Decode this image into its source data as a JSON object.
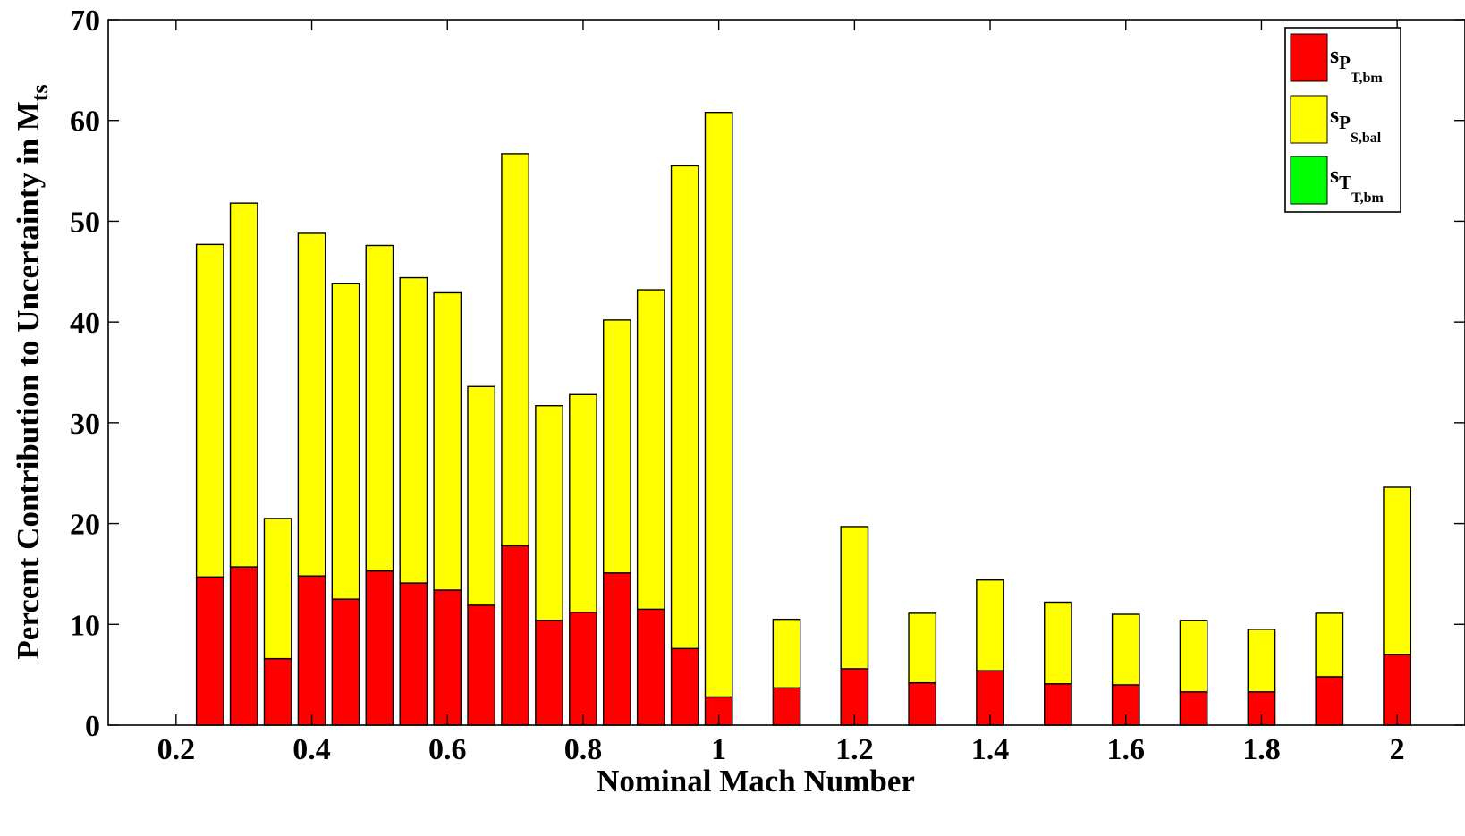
{
  "chart_data": {
    "type": "bar",
    "stacked": true,
    "xlabel": "Nominal Mach Number",
    "ylabel": {
      "text": "Percent Contribution to Uncertainty in M",
      "sub": "ts"
    },
    "xlim": [
      0.1,
      2.1
    ],
    "ylim": [
      0,
      70
    ],
    "xticks": [
      0.2,
      0.4,
      0.6,
      0.8,
      1,
      1.2,
      1.4,
      1.6,
      1.8,
      2
    ],
    "xtick_labels": [
      "0.2",
      "0.4",
      "0.6",
      "0.8",
      "1",
      "1.2",
      "1.4",
      "1.6",
      "1.8",
      "2"
    ],
    "yticks": [
      0,
      10,
      20,
      30,
      40,
      50,
      60,
      70
    ],
    "ytick_labels": [
      "0",
      "10",
      "20",
      "30",
      "40",
      "50",
      "60",
      "70"
    ],
    "grid": false,
    "legend_position": "top-right",
    "bar_width": 0.04,
    "x": [
      0.25,
      0.3,
      0.35,
      0.4,
      0.45,
      0.5,
      0.55,
      0.6,
      0.65,
      0.7,
      0.75,
      0.8,
      0.85,
      0.9,
      0.95,
      1.0,
      1.1,
      1.2,
      1.3,
      1.4,
      1.5,
      1.6,
      1.7,
      1.8,
      1.9,
      2.0
    ],
    "series": [
      {
        "legend": {
          "main": "s",
          "sub1": "P",
          "sub2": "T,bm"
        },
        "color": "#ff0000",
        "values": [
          14.7,
          15.7,
          6.6,
          14.8,
          12.5,
          15.3,
          14.1,
          13.4,
          11.9,
          17.8,
          10.4,
          11.2,
          15.1,
          11.5,
          7.6,
          2.8,
          3.7,
          5.6,
          4.2,
          5.4,
          4.1,
          4.0,
          3.3,
          3.3,
          4.8,
          7.0
        ]
      },
      {
        "legend": {
          "main": "s",
          "sub1": "P",
          "sub2": "S,bal"
        },
        "color": "#ffff00",
        "values": [
          33.0,
          36.1,
          13.9,
          34.0,
          31.3,
          32.3,
          30.3,
          29.5,
          21.7,
          38.9,
          21.3,
          21.6,
          25.1,
          31.7,
          47.9,
          58.0,
          6.8,
          14.1,
          6.9,
          9.0,
          8.1,
          7.0,
          7.1,
          6.2,
          6.3,
          16.6
        ]
      },
      {
        "legend": {
          "main": "s",
          "sub1": "T",
          "sub2": "T,bm"
        },
        "color": "#00ff00",
        "values": [
          0,
          0,
          0,
          0,
          0,
          0,
          0,
          0,
          0,
          0,
          0,
          0,
          0,
          0,
          0,
          0,
          0,
          0,
          0,
          0,
          0,
          0,
          0,
          0,
          0,
          0
        ]
      }
    ]
  }
}
